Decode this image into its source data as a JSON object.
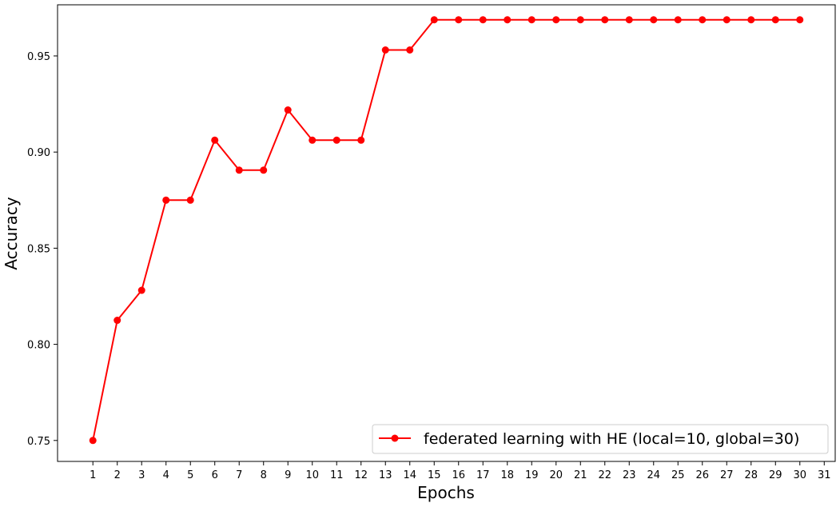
{
  "chart_data": {
    "type": "line",
    "title": "",
    "xlabel": "Epochs",
    "ylabel": "Accuracy",
    "x_ticks": [
      1,
      2,
      3,
      4,
      5,
      6,
      7,
      8,
      9,
      10,
      11,
      12,
      13,
      14,
      15,
      16,
      17,
      18,
      19,
      20,
      21,
      22,
      23,
      24,
      25,
      26,
      27,
      28,
      29,
      30,
      31
    ],
    "y_ticks": [
      0.75,
      0.8,
      0.85,
      0.9,
      0.95
    ],
    "y_tick_labels": [
      "0.75",
      "0.80",
      "0.85",
      "0.90",
      "0.95"
    ],
    "xlim": [
      -0.45,
      31.45
    ],
    "ylim": [
      0.7391,
      0.9766
    ],
    "grid": false,
    "legend_position": "lower-right",
    "series": [
      {
        "name": "federated learning with HE (local=10, global=30)",
        "color": "#ff0000",
        "marker": "circle",
        "x": [
          1,
          2,
          3,
          4,
          5,
          6,
          7,
          8,
          9,
          10,
          11,
          12,
          13,
          14,
          15,
          16,
          17,
          18,
          19,
          20,
          21,
          22,
          23,
          24,
          25,
          26,
          27,
          28,
          29,
          30
        ],
        "y": [
          0.75,
          0.8125,
          0.8281,
          0.875,
          0.875,
          0.9062,
          0.8906,
          0.8906,
          0.9219,
          0.9062,
          0.9062,
          0.9062,
          0.9531,
          0.9531,
          0.9688,
          0.9688,
          0.9688,
          0.9688,
          0.9688,
          0.9688,
          0.9688,
          0.9688,
          0.9688,
          0.9688,
          0.9688,
          0.9688,
          0.9688,
          0.9688,
          0.9688,
          0.9688
        ]
      }
    ]
  }
}
